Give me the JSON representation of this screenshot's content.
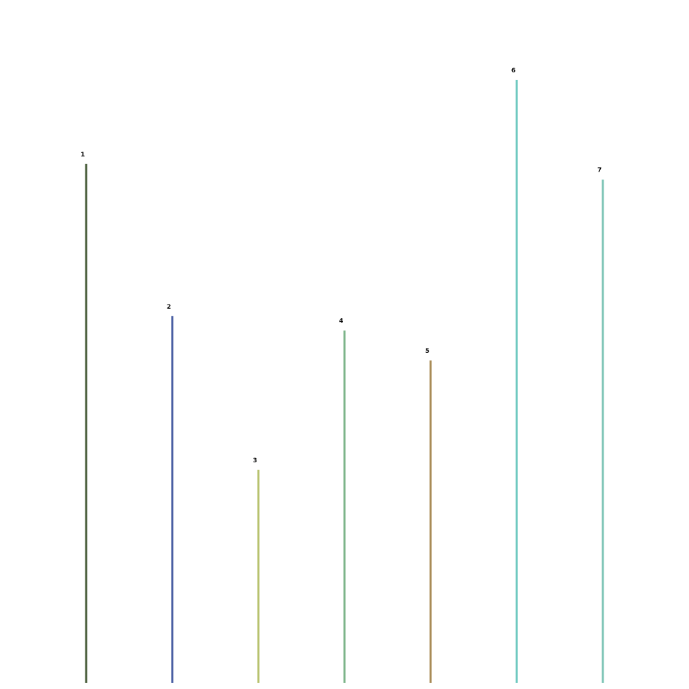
{
  "chart_data": {
    "type": "bar",
    "title": "",
    "xlabel": "",
    "ylabel": "",
    "categories": [
      "1",
      "2",
      "3",
      "4",
      "5",
      "6",
      "7"
    ],
    "values": [
      760,
      537,
      312,
      516,
      472,
      883,
      737
    ],
    "ylim": [
      0,
      1000
    ],
    "colors": [
      "#4a5e3c",
      "#4a5fa3",
      "#b7c26e",
      "#7cb48a",
      "#a88b56",
      "#6fc9c0",
      "#7fc5b6"
    ],
    "grid": false,
    "axes_visible": false,
    "legend": "none"
  }
}
